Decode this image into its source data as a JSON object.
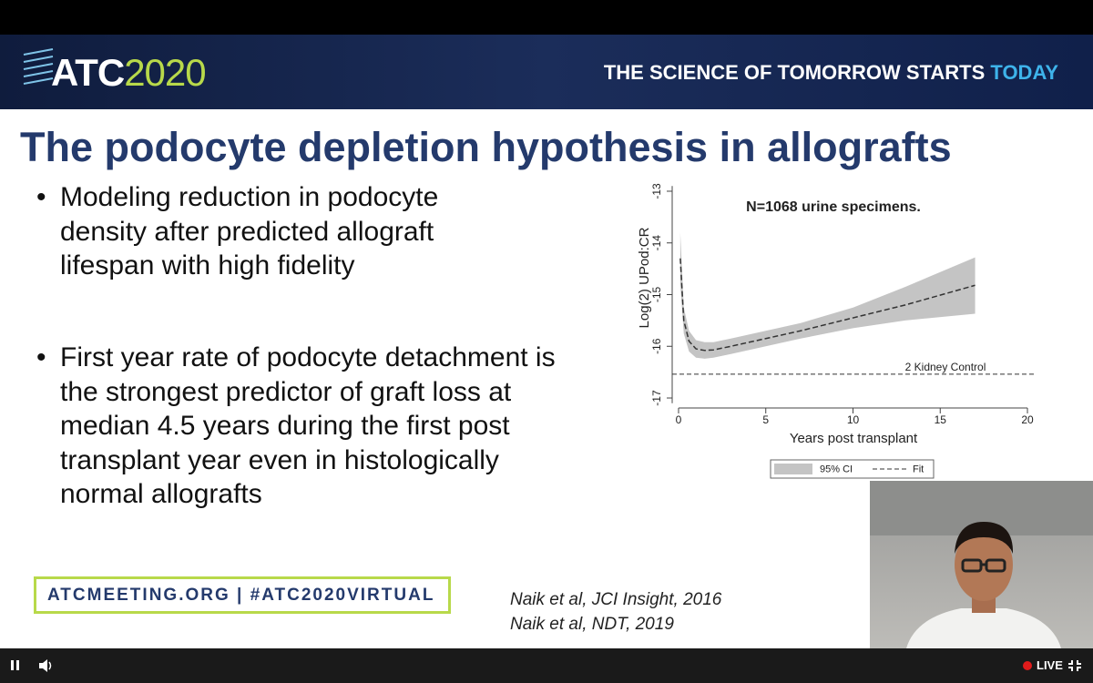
{
  "header": {
    "logo_prefix": "ATC",
    "logo_year": "2020",
    "tagline": "THE SCIENCE OF TOMORROW STARTS",
    "tagline_highlight": "TODAY"
  },
  "slide": {
    "title": "The podocyte depletion hypothesis in allografts",
    "bullets": [
      "Modeling reduction in podocyte density after predicted allograft lifespan with high fidelity",
      "First year rate of podocyte detachment is the strongest predictor of graft loss at median 4.5 years during the first post transplant year even in histologically normal allografts"
    ],
    "footer_link": "ATCMEETING.ORG | #ATC2020VIRTUAL",
    "citations": [
      "Naik et al, JCI Insight, 2016",
      "Naik et al, NDT, 2019"
    ]
  },
  "chart_data": {
    "type": "line",
    "title": "N=1068 urine specimens.",
    "x_label": "Years post transplant",
    "y_label": "Log(2) UPod:CR",
    "xlim": [
      -0.5,
      20.5
    ],
    "ylim": [
      -17.1,
      -12.9
    ],
    "xticks": [
      0,
      5,
      10,
      15,
      20
    ],
    "yticks": [
      -17,
      -16,
      -15,
      -14,
      -13
    ],
    "x": [
      0.1,
      0.3,
      0.6,
      1,
      1.5,
      2,
      3,
      5,
      7,
      10,
      13,
      17
    ],
    "series": [
      {
        "name": "95% CI",
        "color": "#c4c4c4",
        "lower": [
          -14.8,
          -15.75,
          -16.1,
          -16.22,
          -16.24,
          -16.22,
          -16.15,
          -16.0,
          -15.85,
          -15.65,
          -15.5,
          -15.37
        ],
        "upper": [
          -13.8,
          -15.25,
          -15.7,
          -15.88,
          -15.92,
          -15.92,
          -15.85,
          -15.7,
          -15.55,
          -15.25,
          -14.85,
          -14.28
        ]
      },
      {
        "name": "Fit",
        "color": "#333333",
        "values": [
          -14.3,
          -15.5,
          -15.9,
          -16.05,
          -16.08,
          -16.07,
          -16.0,
          -15.85,
          -15.7,
          -15.45,
          -15.2,
          -14.82
        ]
      }
    ],
    "reference_line": {
      "value": -16.54,
      "label": "2 Kidney Control"
    }
  },
  "player": {
    "live": "LIVE"
  }
}
